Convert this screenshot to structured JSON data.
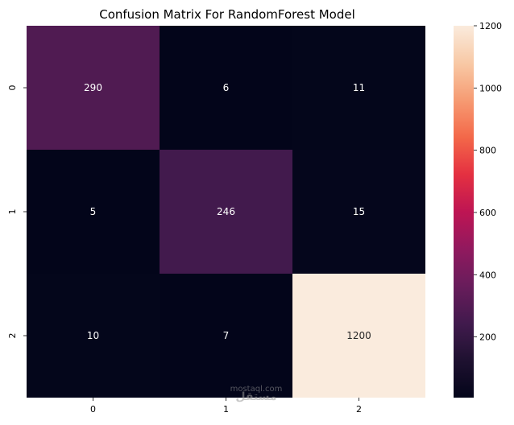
{
  "chart_data": {
    "type": "heatmap",
    "title": "Confusion Matrix For RandomForest Model",
    "xlabel": "",
    "ylabel": "",
    "x_ticks": [
      "0",
      "1",
      "2"
    ],
    "y_ticks": [
      "0",
      "1",
      "2"
    ],
    "matrix": [
      [
        290,
        6,
        11
      ],
      [
        5,
        246,
        15
      ],
      [
        10,
        7,
        1200
      ]
    ],
    "annotations": [
      [
        "290",
        "6",
        "11"
      ],
      [
        "5",
        "246",
        "15"
      ],
      [
        "10",
        "7",
        "1200"
      ]
    ],
    "colormap": "rocket",
    "colorbar": {
      "range": [
        5,
        1200
      ],
      "ticks": [
        200,
        400,
        600,
        800,
        1000,
        1200
      ]
    },
    "grid": false
  },
  "watermark": {
    "text": "مستقل",
    "subtext": "mostaql.com"
  }
}
